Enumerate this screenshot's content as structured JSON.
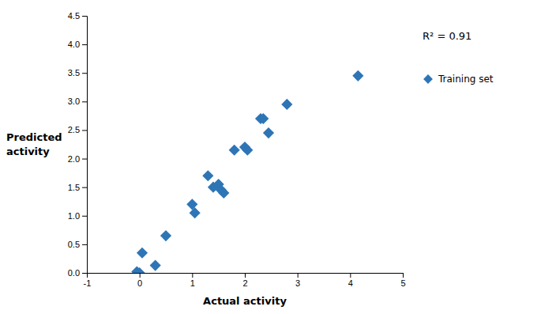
{
  "chart_data": {
    "type": "scatter",
    "xlabel": "Actual activity",
    "ylabel": [
      "Predicted",
      "activity"
    ],
    "annotation": "R² = 0.91",
    "x": [
      -0.05,
      0.0,
      0.05,
      0.3,
      0.5,
      1.0,
      1.05,
      1.3,
      1.4,
      1.5,
      1.55,
      1.6,
      1.8,
      2.0,
      2.05,
      2.3,
      2.35,
      2.45,
      2.8,
      4.15
    ],
    "series": [
      {
        "name": "Training set",
        "color": "#2E75B6",
        "marker": "diamond",
        "values": [
          0.02,
          0.0,
          0.35,
          0.13,
          0.65,
          1.2,
          1.05,
          1.7,
          1.5,
          1.55,
          1.45,
          1.4,
          2.15,
          2.2,
          2.15,
          2.7,
          2.7,
          2.45,
          2.95,
          3.45
        ]
      }
    ],
    "xlim": [
      -1,
      5
    ],
    "ylim": [
      0,
      4.5
    ],
    "xticks": [
      -1,
      0,
      1,
      2,
      3,
      4,
      5
    ],
    "yticks": [
      {
        "value": 0,
        "label": "0.0"
      },
      {
        "value": 0.5,
        "label": "0.5"
      },
      {
        "value": 1,
        "label": "1.0"
      },
      {
        "value": 1.5,
        "label": "1.5"
      },
      {
        "value": 2,
        "label": "2.0"
      },
      {
        "value": 2.5,
        "label": "2.5"
      },
      {
        "value": 3,
        "label": "3.0"
      },
      {
        "value": 3.5,
        "label": "3.5"
      },
      {
        "value": 4,
        "label": "4.0"
      },
      {
        "value": 4.5,
        "label": "4.5"
      }
    ],
    "grid": false,
    "legend": "right"
  }
}
